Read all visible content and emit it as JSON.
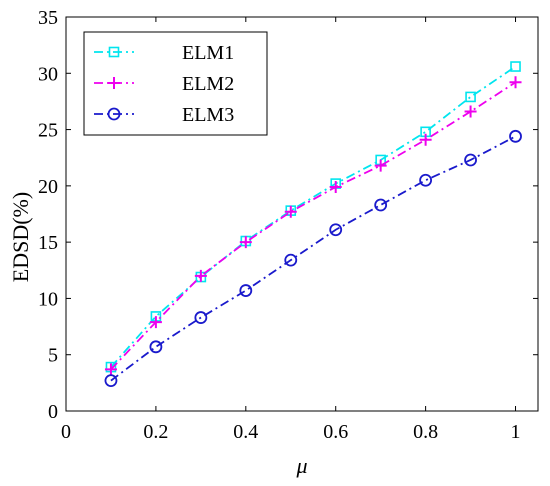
{
  "chart_data": {
    "type": "line",
    "xlabel": "μ",
    "ylabel": "EDSD(%)",
    "xlim": [
      0,
      1.05
    ],
    "ylim": [
      0,
      35
    ],
    "xticks": [
      0,
      0.2,
      0.4,
      0.6,
      0.8,
      1
    ],
    "xtick_labels": [
      "0",
      "0.2",
      "0.4",
      "0.6",
      "0.8",
      "1"
    ],
    "yticks": [
      0,
      5,
      10,
      15,
      20,
      25,
      30,
      35
    ],
    "ytick_labels": [
      "0",
      "5",
      "10",
      "15",
      "20",
      "25",
      "30",
      "35"
    ],
    "grid": false,
    "legend_position": "top-left",
    "x": [
      0.1,
      0.2,
      0.3,
      0.4,
      0.5,
      0.6,
      0.7,
      0.8,
      0.9,
      1.0
    ],
    "series": [
      {
        "name": "ELM1",
        "color": "#00e5ee",
        "marker": "square",
        "line_style": "dash-dot",
        "values": [
          3.9,
          8.4,
          11.9,
          15.1,
          17.8,
          20.2,
          22.3,
          24.8,
          27.9,
          30.6
        ]
      },
      {
        "name": "ELM2",
        "color": "#ee00ee",
        "marker": "plus",
        "line_style": "dash-dot",
        "values": [
          3.7,
          7.9,
          12.0,
          15.0,
          17.7,
          19.9,
          21.8,
          24.1,
          26.6,
          29.2
        ]
      },
      {
        "name": "ELM3",
        "color": "#1a1acc",
        "marker": "circle",
        "line_style": "dash-dot",
        "values": [
          2.7,
          5.7,
          8.3,
          10.7,
          13.4,
          16.1,
          18.3,
          20.5,
          22.3,
          24.4
        ]
      }
    ]
  }
}
